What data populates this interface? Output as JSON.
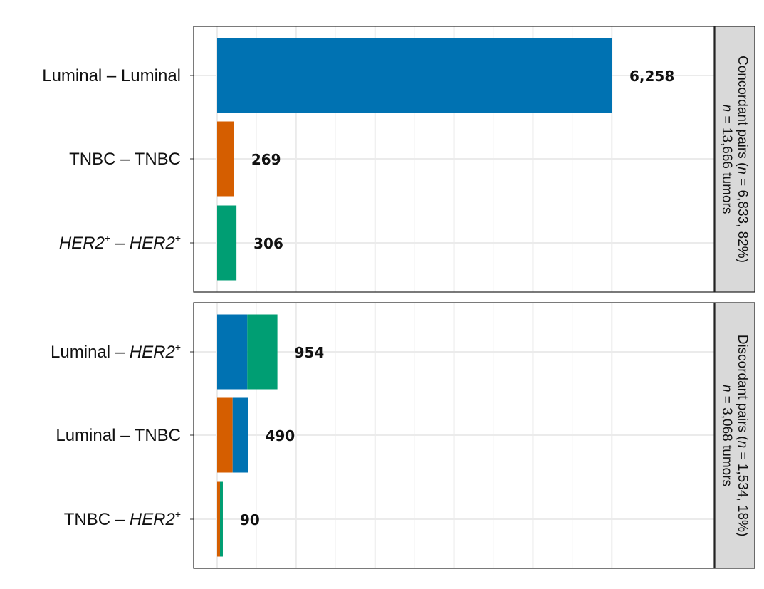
{
  "chart_data": {
    "type": "bar",
    "orientation": "horizontal",
    "stacked": true,
    "grid": true,
    "xlim": [
      0,
      6800
    ],
    "colors": {
      "Luminal": "#0072b2",
      "TNBC": "#d55e00",
      "HER2+": "#009e73"
    },
    "panels": [
      {
        "strip": {
          "line1_parts": [
            {
              "text": "Concordant pairs  (",
              "italic": false
            },
            {
              "text": "n",
              "italic": true
            },
            {
              "text": " = 6,833, 82%)",
              "italic": false
            }
          ],
          "line2_parts": [
            {
              "text": "n",
              "italic": true
            },
            {
              "text": " = 13,666 tumors",
              "italic": false
            }
          ]
        },
        "rows": [
          {
            "label_parts": [
              {
                "text": "Luminal – Luminal",
                "italic": false,
                "sup": false
              }
            ],
            "total": 6258,
            "value_label": "6,258",
            "segments": [
              {
                "group": "Luminal",
                "value": 6258
              }
            ]
          },
          {
            "label_parts": [
              {
                "text": "TNBC – TNBC",
                "italic": false,
                "sup": false
              }
            ],
            "total": 269,
            "value_label": "269",
            "segments": [
              {
                "group": "TNBC",
                "value": 269
              }
            ]
          },
          {
            "label_parts": [
              {
                "text": "HER2",
                "italic": true,
                "sup": false
              },
              {
                "text": "+",
                "italic": false,
                "sup": true
              },
              {
                "text": " – ",
                "italic": false,
                "sup": false
              },
              {
                "text": "HER2",
                "italic": true,
                "sup": false
              },
              {
                "text": "+",
                "italic": false,
                "sup": true
              }
            ],
            "total": 306,
            "value_label": "306",
            "segments": [
              {
                "group": "HER2+",
                "value": 306
              }
            ]
          }
        ]
      },
      {
        "strip": {
          "line1_parts": [
            {
              "text": "Discordant pairs (",
              "italic": false
            },
            {
              "text": "n",
              "italic": true
            },
            {
              "text": " = 1,534, 18%)",
              "italic": false
            }
          ],
          "line2_parts": [
            {
              "text": "n",
              "italic": true
            },
            {
              "text": " = 3,068 tumors",
              "italic": false
            }
          ]
        },
        "rows": [
          {
            "label_parts": [
              {
                "text": "Luminal – ",
                "italic": false,
                "sup": false
              },
              {
                "text": "HER2",
                "italic": true,
                "sup": false
              },
              {
                "text": "+",
                "italic": false,
                "sup": true
              }
            ],
            "total": 954,
            "value_label": "954",
            "segments": [
              {
                "group": "Luminal",
                "value": 477
              },
              {
                "group": "HER2+",
                "value": 477
              }
            ]
          },
          {
            "label_parts": [
              {
                "text": "Luminal – TNBC",
                "italic": false,
                "sup": false
              }
            ],
            "total": 490,
            "value_label": "490",
            "segments": [
              {
                "group": "TNBC",
                "value": 245
              },
              {
                "group": "Luminal",
                "value": 245
              }
            ]
          },
          {
            "label_parts": [
              {
                "text": "TNBC – ",
                "italic": false,
                "sup": false
              },
              {
                "text": "HER2",
                "italic": true,
                "sup": false
              },
              {
                "text": "+",
                "italic": false,
                "sup": true
              }
            ],
            "total": 90,
            "value_label": "90",
            "segments": [
              {
                "group": "TNBC",
                "value": 45
              },
              {
                "group": "HER2+",
                "value": 45
              }
            ]
          }
        ]
      }
    ]
  }
}
